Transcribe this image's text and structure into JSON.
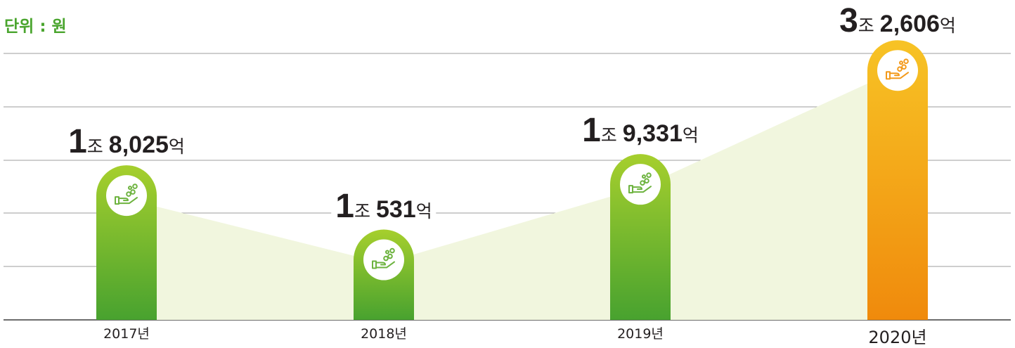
{
  "unit_label": "단위 : 원",
  "chart_data": {
    "type": "bar",
    "categories": [
      "2017년",
      "2018년",
      "2019년",
      "2020년"
    ],
    "values": [
      18025,
      10531,
      19331,
      32606
    ],
    "value_labels": [
      {
        "jo": "1",
        "jo_unit": "조",
        "eok": "8,025",
        "eok_unit": "억"
      },
      {
        "jo": "1",
        "jo_unit": "조",
        "eok": "531",
        "eok_unit": "억"
      },
      {
        "jo": "1",
        "jo_unit": "조",
        "eok": "9,331",
        "eok_unit": "억"
      },
      {
        "jo": "3",
        "jo_unit": "조",
        "eok": "2,606",
        "eok_unit": "억"
      }
    ],
    "value_unit": "억 원",
    "ylim": [
      0,
      35000
    ],
    "grid": true,
    "highlight_index": 3,
    "icon": "hand-coins-icon",
    "colors": {
      "bar_top": "#a6cf2d",
      "bar_bottom": "#48a22f",
      "highlight_top": "#f7c325",
      "highlight_bottom": "#f08a0c",
      "area_fill": "#f1f6de",
      "icon_green": "#6db33f",
      "icon_orange": "#f39a1b",
      "unit_text": "#4aa52e"
    }
  }
}
